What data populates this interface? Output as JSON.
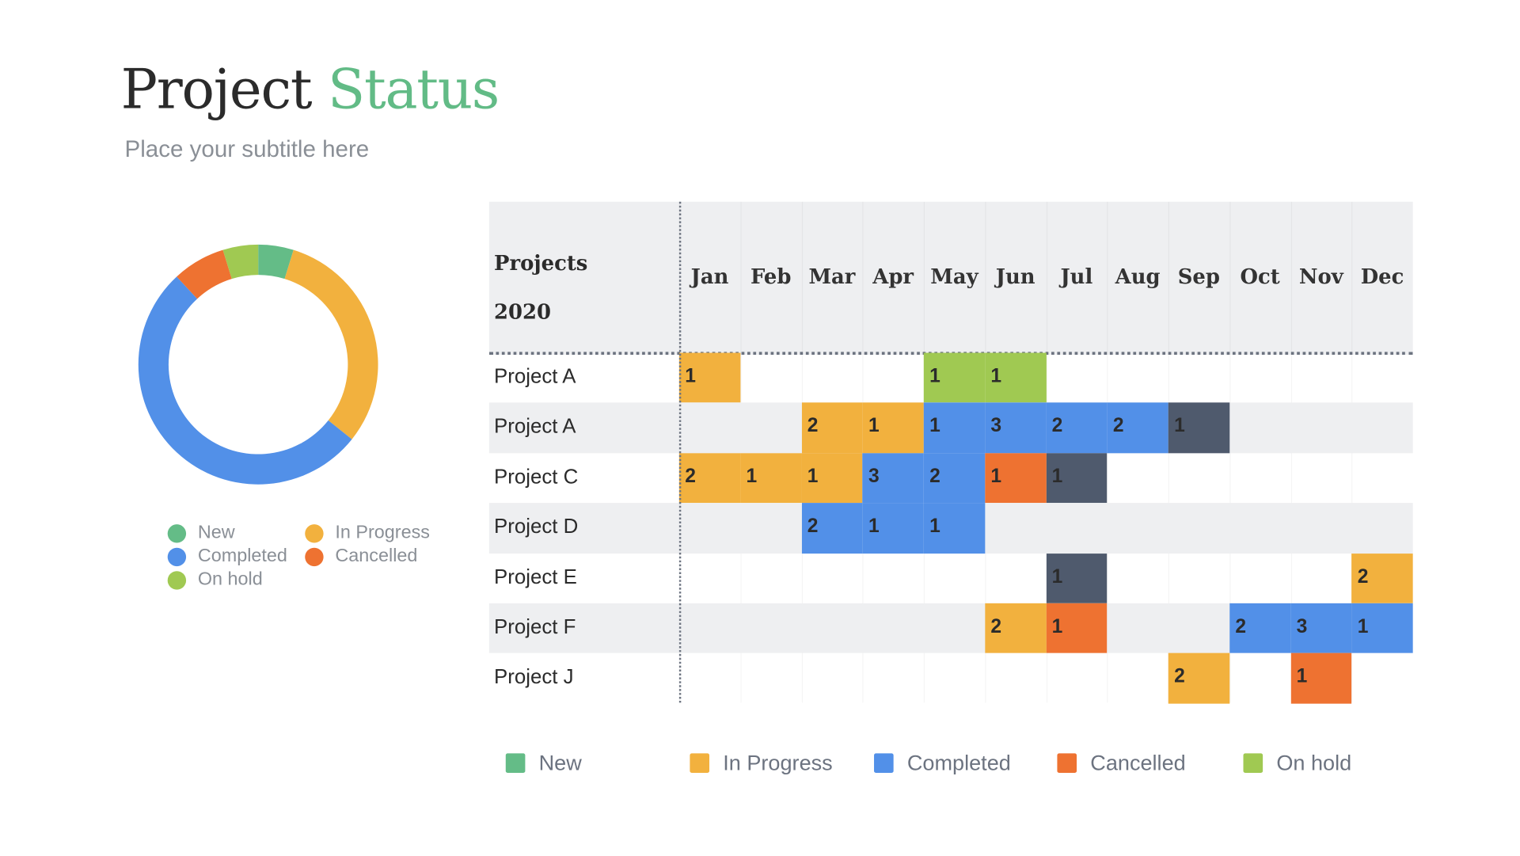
{
  "title": {
    "main": "Project",
    "accent": "Status"
  },
  "subtitle": "Place your subtitle here",
  "colors": {
    "new": "#64BC87",
    "inprogress": "#F2B13E",
    "completed": "#5290E8",
    "cancelled": "#EE7231",
    "onhold": "#A0C952",
    "dark": "#4F5A6D",
    "accent": "#62BB86"
  },
  "legend": [
    {
      "key": "new",
      "label": "New"
    },
    {
      "key": "inprogress",
      "label": "In Progress"
    },
    {
      "key": "completed",
      "label": "Completed"
    },
    {
      "key": "cancelled",
      "label": "Cancelled"
    },
    {
      "key": "onhold",
      "label": "On hold"
    }
  ],
  "chart_data": [
    {
      "type": "pie",
      "subtype": "donut",
      "slices": [
        {
          "key": "new",
          "label": "New",
          "value": 2
        },
        {
          "key": "inprogress",
          "label": "In Progress",
          "value": 13
        },
        {
          "key": "completed",
          "label": "Completed",
          "value": 22
        },
        {
          "key": "cancelled",
          "label": "Cancelled",
          "value": 3
        },
        {
          "key": "onhold",
          "label": "On hold",
          "value": 2
        }
      ],
      "legend_position": "bottom"
    },
    {
      "type": "heatmap",
      "header": {
        "line1": "Projects",
        "line2": "2020"
      },
      "months": [
        "Jan",
        "Feb",
        "Mar",
        "Apr",
        "May",
        "Jun",
        "Jul",
        "Aug",
        "Sep",
        "Oct",
        "Nov",
        "Dec"
      ],
      "rows": [
        {
          "label": "Project A",
          "cells": [
            {
              "m": 0,
              "v": 1,
              "s": "inprogress"
            },
            {
              "m": 4,
              "v": 1,
              "s": "onhold"
            },
            {
              "m": 5,
              "v": 1,
              "s": "onhold"
            }
          ]
        },
        {
          "label": "Project A",
          "cells": [
            {
              "m": 2,
              "v": 2,
              "s": "inprogress"
            },
            {
              "m": 3,
              "v": 1,
              "s": "inprogress"
            },
            {
              "m": 4,
              "v": 1,
              "s": "completed"
            },
            {
              "m": 5,
              "v": 3,
              "s": "completed"
            },
            {
              "m": 6,
              "v": 2,
              "s": "completed"
            },
            {
              "m": 7,
              "v": 2,
              "s": "completed"
            },
            {
              "m": 8,
              "v": 1,
              "s": "dark"
            }
          ]
        },
        {
          "label": "Project C",
          "cells": [
            {
              "m": 0,
              "v": 2,
              "s": "inprogress"
            },
            {
              "m": 1,
              "v": 1,
              "s": "inprogress"
            },
            {
              "m": 2,
              "v": 1,
              "s": "inprogress"
            },
            {
              "m": 3,
              "v": 3,
              "s": "completed"
            },
            {
              "m": 4,
              "v": 2,
              "s": "completed"
            },
            {
              "m": 5,
              "v": 1,
              "s": "cancelled"
            },
            {
              "m": 6,
              "v": 1,
              "s": "dark"
            }
          ]
        },
        {
          "label": "Project D",
          "cells": [
            {
              "m": 2,
              "v": 2,
              "s": "completed"
            },
            {
              "m": 3,
              "v": 1,
              "s": "completed"
            },
            {
              "m": 4,
              "v": 1,
              "s": "completed"
            }
          ]
        },
        {
          "label": "Project E",
          "cells": [
            {
              "m": 6,
              "v": 1,
              "s": "dark"
            },
            {
              "m": 11,
              "v": 2,
              "s": "inprogress"
            }
          ]
        },
        {
          "label": "Project F",
          "cells": [
            {
              "m": 5,
              "v": 2,
              "s": "inprogress"
            },
            {
              "m": 6,
              "v": 1,
              "s": "cancelled"
            },
            {
              "m": 9,
              "v": 2,
              "s": "completed"
            },
            {
              "m": 10,
              "v": 3,
              "s": "completed"
            },
            {
              "m": 11,
              "v": 1,
              "s": "completed"
            }
          ]
        },
        {
          "label": "Project J",
          "cells": [
            {
              "m": 8,
              "v": 2,
              "s": "inprogress"
            },
            {
              "m": 10,
              "v": 1,
              "s": "cancelled"
            }
          ]
        }
      ],
      "legend_position": "bottom"
    }
  ]
}
